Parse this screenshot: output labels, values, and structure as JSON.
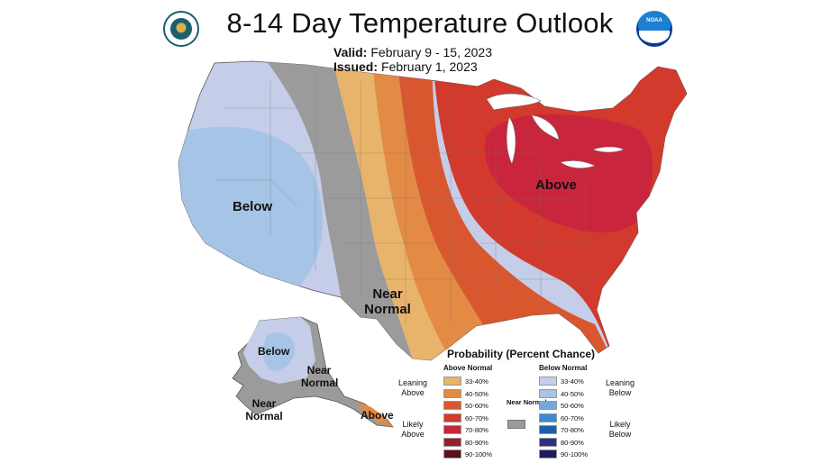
{
  "title": "8-14 Day Temperature Outlook",
  "valid_label": "Valid:",
  "valid_value": "February 9 - 15, 2023",
  "issued_label": "Issued:",
  "issued_value": "February 1, 2023",
  "logos": {
    "left": "doc-seal-icon",
    "right": "noaa-logo-icon",
    "noaa_text": "NOAA"
  },
  "regions": {
    "west_below": "Below",
    "central_near_normal": "Near Normal",
    "east_above": "Above",
    "alaska_below": "Below",
    "alaska_near_normal_east": "Near Normal",
    "alaska_near_normal_south": "Near Normal",
    "alaska_above": "Above"
  },
  "colors": {
    "above_33_40": "#e8b36a",
    "above_40_50": "#e38a45",
    "above_50_60": "#d9572f",
    "above_60_70": "#d13a2c",
    "above_70_80": "#c9253c",
    "above_80_90": "#9b1b2f",
    "above_90_100": "#5e0f1a",
    "near_normal": "#9b9b9b",
    "below_33_40": "#c5cde8",
    "below_40_50": "#a6c4e6",
    "below_50_60": "#73a8de",
    "below_60_70": "#3b8bd0",
    "below_70_80": "#1b5fa8",
    "below_80_90": "#2b2f8a",
    "below_90_100": "#1e1a5e"
  },
  "legend": {
    "title": "Probability (Percent Chance)",
    "above_header": "Above Normal",
    "below_header": "Below Normal",
    "leaning_above": "Leaning Above",
    "likely_above": "Likely Above",
    "leaning_below": "Leaning Below",
    "likely_below": "Likely Below",
    "near_normal": "Near Normal",
    "above_ranges": [
      "33-40%",
      "40-50%",
      "50-60%",
      "60-70%",
      "70-80%",
      "80-90%",
      "90-100%"
    ],
    "below_ranges": [
      "33-40%",
      "40-50%",
      "50-60%",
      "60-70%",
      "70-80%",
      "80-90%",
      "90-100%"
    ]
  }
}
